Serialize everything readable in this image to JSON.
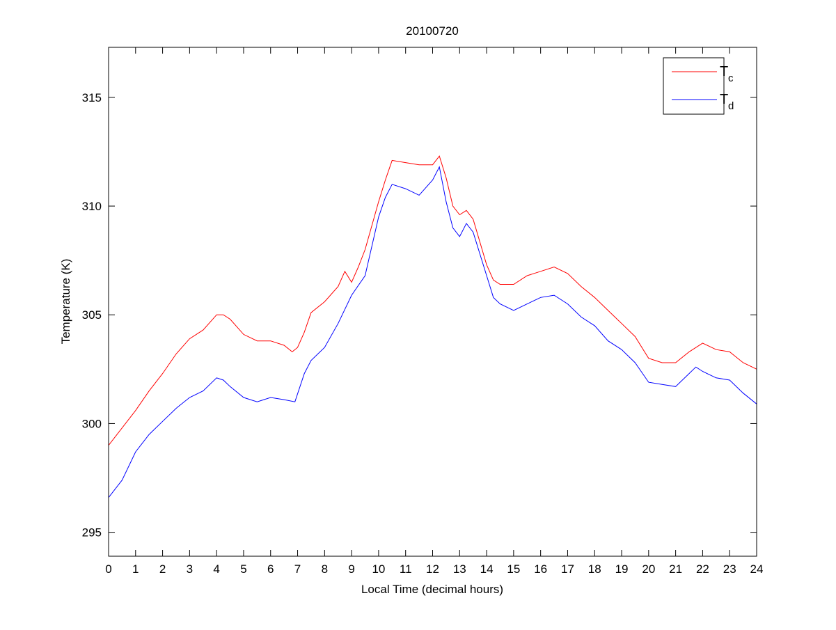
{
  "chart_data": {
    "type": "line",
    "title": "20100720",
    "xlabel": "Local Time (decimal hours)",
    "ylabel": "Temperature (K)",
    "xlim": [
      0,
      24
    ],
    "ylim": [
      293.9,
      317.3
    ],
    "xticks": [
      0,
      1,
      2,
      3,
      4,
      5,
      6,
      7,
      8,
      9,
      10,
      11,
      12,
      13,
      14,
      15,
      16,
      17,
      18,
      19,
      20,
      21,
      22,
      23,
      24
    ],
    "yticks": [
      295,
      300,
      305,
      310,
      315
    ],
    "grid": false,
    "legend_position": "top-right",
    "series": [
      {
        "name": "T",
        "subscript": "c",
        "color": "#ff0000",
        "x": [
          0,
          0.5,
          1,
          1.5,
          2,
          2.5,
          3,
          3.5,
          4,
          4.25,
          4.5,
          5,
          5.5,
          6,
          6.5,
          6.8,
          7,
          7.25,
          7.5,
          8,
          8.5,
          8.75,
          9,
          9.25,
          9.5,
          10,
          10.25,
          10.5,
          11,
          11.5,
          12,
          12.25,
          12.5,
          12.75,
          13,
          13.25,
          13.5,
          14,
          14.25,
          14.5,
          15,
          15.5,
          16,
          16.5,
          17,
          17.5,
          18,
          18.5,
          19,
          19.5,
          20,
          20.5,
          21,
          21.5,
          22,
          22.5,
          23,
          23.5,
          24
        ],
        "y": [
          299.0,
          299.8,
          300.6,
          301.5,
          302.3,
          303.2,
          303.9,
          304.3,
          305.0,
          305.0,
          304.8,
          304.1,
          303.8,
          303.8,
          303.6,
          303.3,
          303.5,
          304.2,
          305.1,
          305.6,
          306.3,
          307.0,
          306.5,
          307.2,
          308.0,
          310.2,
          311.2,
          312.1,
          312.0,
          311.9,
          311.9,
          312.3,
          311.3,
          310.0,
          309.6,
          309.8,
          309.4,
          307.3,
          306.6,
          306.4,
          306.4,
          306.8,
          307.0,
          307.2,
          306.9,
          306.3,
          305.8,
          305.2,
          304.6,
          304.0,
          303.0,
          302.8,
          302.8,
          303.3,
          303.7,
          303.4,
          303.3,
          302.8,
          302.5
        ]
      },
      {
        "name": "T",
        "subscript": "d",
        "color": "#0000ff",
        "x": [
          0,
          0.25,
          0.5,
          1,
          1.5,
          2,
          2.5,
          3,
          3.5,
          4,
          4.25,
          4.5,
          5,
          5.5,
          6,
          6.5,
          6.9,
          7.25,
          7.5,
          8,
          8.5,
          9,
          9.5,
          10,
          10.25,
          10.5,
          11,
          11.5,
          12,
          12.25,
          12.5,
          12.75,
          13,
          13.25,
          13.5,
          14,
          14.25,
          14.5,
          15,
          15.5,
          16,
          16.5,
          17,
          17.5,
          18,
          18.5,
          19,
          19.5,
          20,
          20.5,
          21,
          21.5,
          21.75,
          22,
          22.5,
          23,
          23.5,
          24
        ],
        "y": [
          296.6,
          297.0,
          297.4,
          298.7,
          299.5,
          300.1,
          300.7,
          301.2,
          301.5,
          302.1,
          302.0,
          301.7,
          301.2,
          301.0,
          301.2,
          301.1,
          301.0,
          302.3,
          302.9,
          303.5,
          304.6,
          305.9,
          306.8,
          309.5,
          310.4,
          311.0,
          310.8,
          310.5,
          311.2,
          311.8,
          310.2,
          309.0,
          308.6,
          309.2,
          308.8,
          306.8,
          305.8,
          305.5,
          305.2,
          305.5,
          305.8,
          305.9,
          305.5,
          304.9,
          304.5,
          303.8,
          303.4,
          302.8,
          301.9,
          301.8,
          301.7,
          302.3,
          302.6,
          302.4,
          302.1,
          302.0,
          301.4,
          300.9
        ]
      }
    ]
  }
}
